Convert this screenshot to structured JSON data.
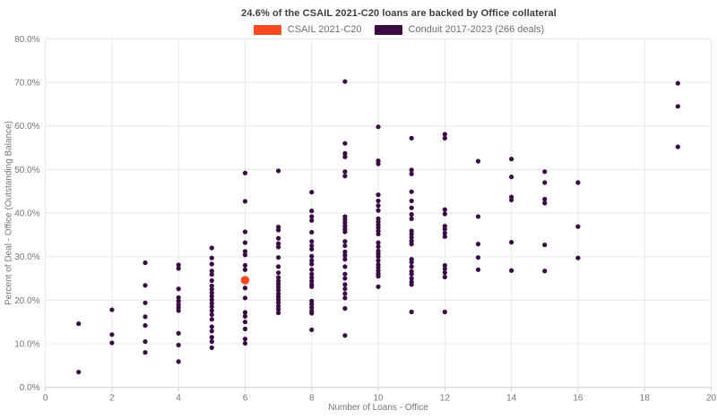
{
  "title": "24.6% of the CSAIL 2021-C20 loans are backed by Office collateral",
  "legend": [
    {
      "label": "CSAIL 2021-C20",
      "color": "#f94a21"
    },
    {
      "label": "Conduit 2017-2023 (266 deals)",
      "color": "#3a0a44"
    }
  ],
  "colors": {
    "background": "#ffffff",
    "gridline": "#e8e8e8",
    "axis_line": "#cccccc",
    "tick_text": "#757575",
    "title_text": "#3d3d3d",
    "csail_orange": "#f94a21",
    "conduit_purple": "#3a0a44"
  },
  "chart_data": {
    "type": "scatter",
    "title": "24.6% of the CSAIL 2021-C20 loans are backed by Office collateral",
    "xlabel": "Number of Loans - Office",
    "ylabel": "Percent of Deal - Office (Outstanding Balance)",
    "xlim": [
      0,
      20
    ],
    "ylim": [
      0,
      80
    ],
    "x_ticks": [
      0,
      2,
      4,
      6,
      8,
      10,
      12,
      14,
      16,
      18,
      20
    ],
    "y_ticks": [
      "0.0%",
      "10.0%",
      "20.0%",
      "30.0%",
      "40.0%",
      "50.0%",
      "60.0%",
      "70.0%",
      "80.0%"
    ],
    "grid": true,
    "legend_position": "top-center",
    "series": [
      {
        "name": "Conduit 2017-2023 (266 deals)",
        "color": "#3a0a44",
        "marker_radius": 2.6,
        "points": [
          [
            1,
            14.6
          ],
          [
            1,
            3.5
          ],
          [
            2,
            17.8
          ],
          [
            2,
            12.1
          ],
          [
            2,
            10.2
          ],
          [
            3,
            28.6
          ],
          [
            3,
            23.4
          ],
          [
            3,
            19.4
          ],
          [
            3,
            16.2
          ],
          [
            3,
            14.2
          ],
          [
            3,
            10.5
          ],
          [
            3,
            8.0
          ],
          [
            4,
            28.1
          ],
          [
            4,
            27.3
          ],
          [
            4,
            22.6
          ],
          [
            4,
            20.6
          ],
          [
            4,
            19.8
          ],
          [
            4,
            19.0
          ],
          [
            4,
            18.3
          ],
          [
            4,
            17.6
          ],
          [
            4,
            12.4
          ],
          [
            4,
            9.7
          ],
          [
            4,
            5.9
          ],
          [
            5,
            32.0
          ],
          [
            5,
            29.7
          ],
          [
            5,
            28.3
          ],
          [
            5,
            26.7
          ],
          [
            5,
            25.9
          ],
          [
            5,
            24.5
          ],
          [
            5,
            23.3
          ],
          [
            5,
            22.5
          ],
          [
            5,
            21.7
          ],
          [
            5,
            20.9
          ],
          [
            5,
            20.1
          ],
          [
            5,
            19.3
          ],
          [
            5,
            18.5
          ],
          [
            5,
            17.6
          ],
          [
            5,
            16.7
          ],
          [
            5,
            15.6
          ],
          [
            5,
            13.9
          ],
          [
            5,
            12.9
          ],
          [
            5,
            11.5
          ],
          [
            5,
            10.5
          ],
          [
            5,
            9.1
          ],
          [
            6,
            49.2
          ],
          [
            6,
            42.7
          ],
          [
            6,
            35.7
          ],
          [
            6,
            33.2
          ],
          [
            6,
            31.2
          ],
          [
            6,
            30.4
          ],
          [
            6,
            28.0
          ],
          [
            6,
            27.0
          ],
          [
            6,
            22.8
          ],
          [
            6,
            20.5
          ],
          [
            6,
            17.2
          ],
          [
            6,
            16.3
          ],
          [
            6,
            15.0
          ],
          [
            6,
            13.4
          ],
          [
            6,
            11.1
          ],
          [
            6,
            10.1
          ],
          [
            7,
            49.7
          ],
          [
            7,
            36.8
          ],
          [
            7,
            36.1
          ],
          [
            7,
            34.2
          ],
          [
            7,
            33.0
          ],
          [
            7,
            32.2
          ],
          [
            7,
            29.8
          ],
          [
            7,
            27.7
          ],
          [
            7,
            26.3
          ],
          [
            7,
            25.2
          ],
          [
            7,
            24.4
          ],
          [
            7,
            23.7
          ],
          [
            7,
            23.0
          ],
          [
            7,
            22.3
          ],
          [
            7,
            21.5
          ],
          [
            7,
            20.8
          ],
          [
            7,
            20.1
          ],
          [
            7,
            19.4
          ],
          [
            7,
            18.6
          ],
          [
            7,
            17.9
          ],
          [
            7,
            17.1
          ],
          [
            8,
            44.8
          ],
          [
            8,
            40.5
          ],
          [
            8,
            39.2
          ],
          [
            8,
            38.3
          ],
          [
            8,
            35.6
          ],
          [
            8,
            33.5
          ],
          [
            8,
            32.5
          ],
          [
            8,
            31.7
          ],
          [
            8,
            30.1
          ],
          [
            8,
            29.1
          ],
          [
            8,
            28.3
          ],
          [
            8,
            27.0
          ],
          [
            8,
            26.0
          ],
          [
            8,
            25.2
          ],
          [
            8,
            24.4
          ],
          [
            8,
            23.6
          ],
          [
            8,
            23.1
          ],
          [
            8,
            19.8
          ],
          [
            8,
            19.1
          ],
          [
            8,
            18.3
          ],
          [
            8,
            17.5
          ],
          [
            8,
            17.0
          ],
          [
            8,
            13.2
          ],
          [
            9,
            70.2
          ],
          [
            9,
            56.0
          ],
          [
            9,
            53.7
          ],
          [
            9,
            52.9
          ],
          [
            9,
            49.5
          ],
          [
            9,
            48.5
          ],
          [
            9,
            39.2
          ],
          [
            9,
            38.5
          ],
          [
            9,
            37.8
          ],
          [
            9,
            37.0
          ],
          [
            9,
            36.3
          ],
          [
            9,
            35.7
          ],
          [
            9,
            33.5
          ],
          [
            9,
            32.5
          ],
          [
            9,
            31.1
          ],
          [
            9,
            30.3
          ],
          [
            9,
            29.4
          ],
          [
            9,
            27.7
          ],
          [
            9,
            26.0
          ],
          [
            9,
            25.0
          ],
          [
            9,
            23.6
          ],
          [
            9,
            22.6
          ],
          [
            9,
            21.5
          ],
          [
            9,
            20.5
          ],
          [
            9,
            18.1
          ],
          [
            9,
            11.9
          ],
          [
            10,
            59.8
          ],
          [
            10,
            52.0
          ],
          [
            10,
            51.3
          ],
          [
            10,
            44.2
          ],
          [
            10,
            42.8
          ],
          [
            10,
            41.7
          ],
          [
            10,
            40.6
          ],
          [
            10,
            38.7
          ],
          [
            10,
            38.0
          ],
          [
            10,
            37.3
          ],
          [
            10,
            36.6
          ],
          [
            10,
            35.9
          ],
          [
            10,
            35.2
          ],
          [
            10,
            33.2
          ],
          [
            10,
            32.3
          ],
          [
            10,
            31.3
          ],
          [
            10,
            30.6
          ],
          [
            10,
            30.0
          ],
          [
            10,
            29.1
          ],
          [
            10,
            28.2
          ],
          [
            10,
            27.5
          ],
          [
            10,
            26.8
          ],
          [
            10,
            26.1
          ],
          [
            10,
            25.5
          ],
          [
            10,
            23.1
          ],
          [
            11,
            57.2
          ],
          [
            11,
            49.9
          ],
          [
            11,
            49.0
          ],
          [
            11,
            44.9
          ],
          [
            11,
            42.8
          ],
          [
            11,
            41.2
          ],
          [
            11,
            39.7
          ],
          [
            11,
            38.7
          ],
          [
            11,
            35.9
          ],
          [
            11,
            35.2
          ],
          [
            11,
            34.4
          ],
          [
            11,
            33.6
          ],
          [
            11,
            32.9
          ],
          [
            11,
            29.4
          ],
          [
            11,
            28.7
          ],
          [
            11,
            27.7
          ],
          [
            11,
            26.6
          ],
          [
            11,
            26.0
          ],
          [
            11,
            25.0
          ],
          [
            11,
            24.2
          ],
          [
            11,
            23.6
          ],
          [
            11,
            17.3
          ],
          [
            12,
            58.1
          ],
          [
            12,
            57.2
          ],
          [
            12,
            40.8
          ],
          [
            12,
            39.8
          ],
          [
            12,
            37.0
          ],
          [
            12,
            36.3
          ],
          [
            12,
            35.4
          ],
          [
            12,
            34.6
          ],
          [
            12,
            28.0
          ],
          [
            12,
            27.2
          ],
          [
            12,
            26.3
          ],
          [
            12,
            25.3
          ],
          [
            12,
            17.3
          ],
          [
            13,
            51.9
          ],
          [
            13,
            39.2
          ],
          [
            13,
            32.9
          ],
          [
            13,
            29.8
          ],
          [
            13,
            27.0
          ],
          [
            14,
            52.4
          ],
          [
            14,
            48.3
          ],
          [
            14,
            43.7
          ],
          [
            14,
            43.0
          ],
          [
            14,
            33.3
          ],
          [
            14,
            26.8
          ],
          [
            15,
            49.5
          ],
          [
            15,
            47.0
          ],
          [
            15,
            43.2
          ],
          [
            15,
            42.3
          ],
          [
            15,
            32.7
          ],
          [
            15,
            26.7
          ],
          [
            16,
            47.0
          ],
          [
            16,
            36.9
          ],
          [
            16,
            29.7
          ],
          [
            19,
            69.8
          ],
          [
            19,
            64.5
          ],
          [
            19,
            55.2
          ]
        ]
      },
      {
        "name": "CSAIL 2021-C20",
        "color": "#f94a21",
        "marker_radius": 4.8,
        "points": [
          [
            6,
            24.6
          ]
        ]
      }
    ]
  }
}
